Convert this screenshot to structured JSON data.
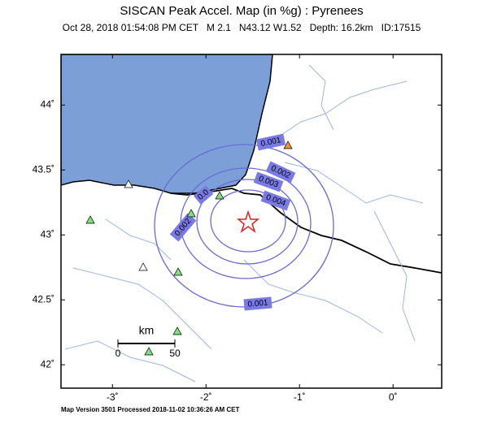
{
  "header": {
    "title": "SISCAN Peak Accel. Map (in %g) : Pyrenees",
    "subtitle": "Oct 28, 2018 01:54:08 PM CET   M 2.1   N43.12 W1.52   Depth: 16.2km   ID:17515"
  },
  "map": {
    "lonlim": [
      -3.55,
      0.52
    ],
    "latlim": [
      41.82,
      44.39
    ],
    "lon_ticks": [
      {
        "value": -3,
        "label": "-3˚"
      },
      {
        "value": -2,
        "label": "-2˚"
      },
      {
        "value": -1,
        "label": "-1˚"
      },
      {
        "value": 0,
        "label": "0˚"
      }
    ],
    "lat_ticks": [
      {
        "value": 42,
        "label": "42˚"
      },
      {
        "value": 42.5,
        "label": "42.5˚"
      },
      {
        "value": 43,
        "label": "43˚"
      },
      {
        "value": 43.5,
        "label": "43.5˚"
      },
      {
        "value": 44,
        "label": "44˚"
      }
    ],
    "contour_labels": [
      "0.001",
      "0.002",
      "0.003",
      "0.004",
      "0.002",
      "0.001",
      "0.0"
    ],
    "scale": {
      "unit": "km",
      "labels": [
        "0",
        "50"
      ]
    }
  },
  "footer": "Map Version 3501 Processed 2018-11-02 10:36:26 AM CET"
}
